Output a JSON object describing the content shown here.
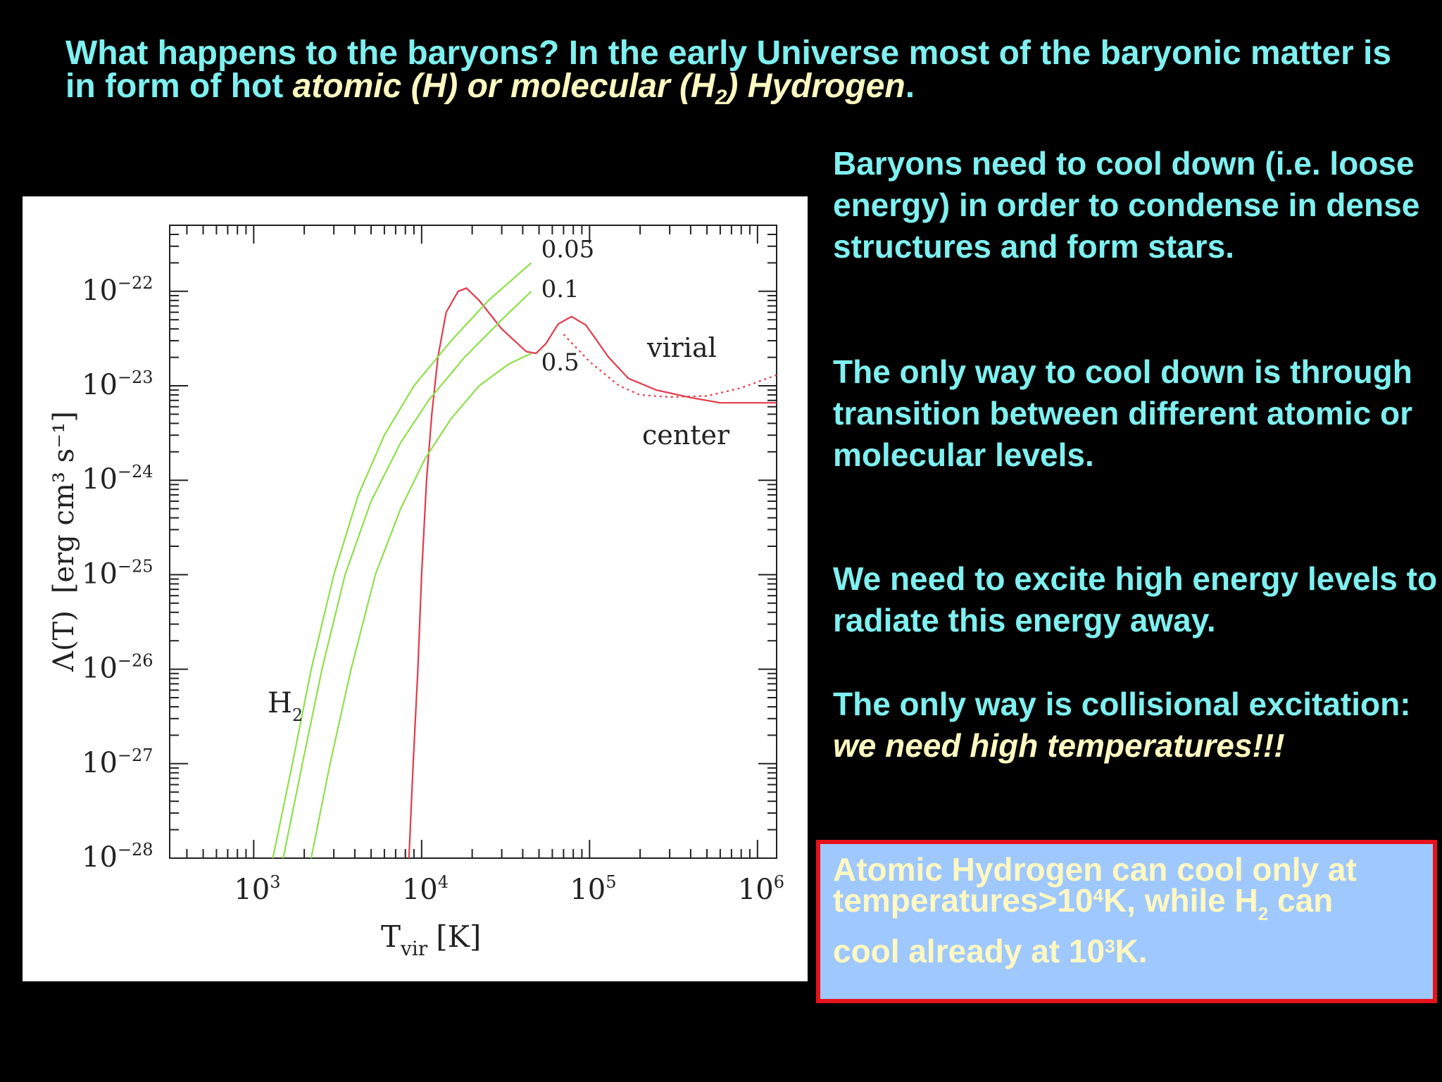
{
  "title": {
    "part1": "What happens to the baryons? In the early Universe most of the baryonic matter is in form of hot ",
    "part2": "atomic (H) or molecular (H",
    "part2_sub": "2",
    "part3": ") Hydrogen",
    "part4": "."
  },
  "paragraphs": {
    "p1": "Baryons need to cool down (i.e. loose energy) in order to condense in dense structures and form stars.",
    "p2": "The only way to cool down is through transition between different atomic or molecular levels.",
    "p3": "We need to excite high energy levels to radiate this energy away.",
    "p4_a": "The only way is collisional excitation: ",
    "p4_b": "we need high temperatures!!!"
  },
  "summary": {
    "a": "Atomic Hydrogen can cool only at temperatures>10",
    "a_sup": "4",
    "b": "K, while H",
    "b_sub": "2",
    "c": " can",
    "d": "cool already at 10",
    "d_sup": "3",
    "e": "K."
  },
  "colors": {
    "background": "#000000",
    "heading_text": "#7ff0f0",
    "highlight_text": "#fff8c0",
    "box_fill": "#9ec8ff",
    "box_border": "#e8121a",
    "atomic_curve": "#e23a4a",
    "h2_curves": "#8ee04a"
  },
  "chart_data": {
    "type": "line",
    "xscale": "log",
    "yscale": "log",
    "xlim": [
      316,
      1300000
    ],
    "ylim": [
      1e-28,
      5e-22
    ],
    "x_ticks": [
      {
        "value": 1000,
        "base": "10",
        "exp": "3"
      },
      {
        "value": 10000,
        "base": "10",
        "exp": "4"
      },
      {
        "value": 100000,
        "base": "10",
        "exp": "5"
      },
      {
        "value": 1000000,
        "base": "10",
        "exp": "6"
      }
    ],
    "y_ticks": [
      {
        "value": 1e-22,
        "base": "10",
        "exp": "−22"
      },
      {
        "value": 1e-23,
        "base": "10",
        "exp": "−23"
      },
      {
        "value": 1e-24,
        "base": "10",
        "exp": "−24"
      },
      {
        "value": 1e-25,
        "base": "10",
        "exp": "−25"
      },
      {
        "value": 1e-26,
        "base": "10",
        "exp": "−26"
      },
      {
        "value": 1e-27,
        "base": "10",
        "exp": "−27"
      },
      {
        "value": 1e-28,
        "base": "10",
        "exp": "−28"
      }
    ],
    "xlabel_main": "T",
    "xlabel_sub": "vir",
    "xlabel_unit": "[K]",
    "ylabel_main": "Λ(T)",
    "ylabel_unit": "[erg cm³ s⁻¹]",
    "annotations": {
      "virial": "virial",
      "center": "center",
      "h2": "H",
      "h2_sub": "2"
    },
    "series": [
      {
        "label": "virial",
        "color": "#e23a4a",
        "dash": "3,5",
        "points": [
          [
            70000,
            3.5e-23
          ],
          [
            100000,
            1.8e-23
          ],
          [
            150000,
            1e-23
          ],
          [
            200000,
            8e-24
          ],
          [
            300000,
            7.6e-24
          ],
          [
            500000,
            7.8e-24
          ],
          [
            800000,
            9.5e-24
          ],
          [
            1300000,
            1.3e-23
          ]
        ]
      },
      {
        "label": "center",
        "color": "#e23a4a",
        "points": [
          [
            8400,
            1e-28
          ],
          [
            8900,
            1e-27
          ],
          [
            9500,
            1e-26
          ],
          [
            10000,
            1e-25
          ],
          [
            10700,
            1e-24
          ],
          [
            11500,
            5e-24
          ],
          [
            12500,
            2e-23
          ],
          [
            14000,
            6e-23
          ],
          [
            16500,
            1e-22
          ],
          [
            18500,
            1.08e-22
          ],
          [
            22000,
            8e-23
          ],
          [
            30000,
            4e-23
          ],
          [
            42000,
            2.3e-23
          ],
          [
            48000,
            2.2e-23
          ],
          [
            55000,
            2.8e-23
          ],
          [
            65000,
            4.5e-23
          ],
          [
            78000,
            5.4e-23
          ],
          [
            95000,
            4.4e-23
          ],
          [
            130000,
            2e-23
          ],
          [
            170000,
            1.2e-23
          ],
          [
            250000,
            9e-24
          ],
          [
            400000,
            7.5e-24
          ],
          [
            600000,
            6.6e-24
          ],
          [
            1300000,
            6.6e-24
          ]
        ]
      },
      {
        "label": "0.05",
        "color": "#8ee04a",
        "points": [
          [
            1300,
            1e-28
          ],
          [
            1700,
            1e-27
          ],
          [
            2200,
            1e-26
          ],
          [
            3000,
            1e-25
          ],
          [
            4200,
            7e-25
          ],
          [
            6000,
            3e-24
          ],
          [
            9000,
            1e-23
          ],
          [
            15000,
            3e-23
          ],
          [
            25000,
            8e-23
          ],
          [
            45000,
            2e-22
          ]
        ]
      },
      {
        "label": "0.1",
        "color": "#8ee04a",
        "points": [
          [
            1500,
            1e-28
          ],
          [
            1950,
            1e-27
          ],
          [
            2550,
            1e-26
          ],
          [
            3500,
            1e-25
          ],
          [
            5000,
            6e-25
          ],
          [
            7500,
            2.5e-24
          ],
          [
            11000,
            7e-24
          ],
          [
            18000,
            2e-23
          ],
          [
            30000,
            5e-23
          ],
          [
            45000,
            1e-22
          ]
        ]
      },
      {
        "label": "0.5",
        "color": "#8ee04a",
        "points": [
          [
            2200,
            1e-28
          ],
          [
            2850,
            1e-27
          ],
          [
            3800,
            1e-26
          ],
          [
            5300,
            1e-25
          ],
          [
            7500,
            5e-25
          ],
          [
            10500,
            1.7e-24
          ],
          [
            15000,
            4.5e-24
          ],
          [
            22000,
            1e-23
          ],
          [
            33000,
            1.7e-23
          ],
          [
            45000,
            2.2e-23
          ]
        ]
      }
    ]
  }
}
